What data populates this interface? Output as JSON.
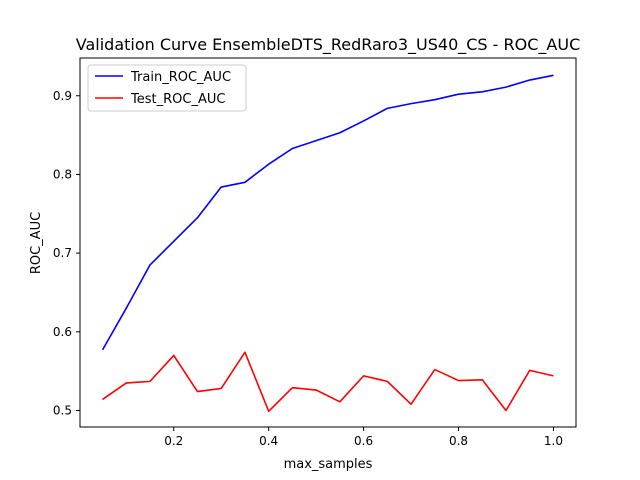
{
  "chart_data": {
    "type": "line",
    "title": "Validation Curve EnsembleDTS_RedRaro3_US40_CS - ROC_AUC",
    "xlabel": "max_samples",
    "ylabel": "ROC_AUC",
    "xlim": [
      0.0025,
      1.0475
    ],
    "ylim": [
      0.479,
      0.948
    ],
    "x_ticks": [
      0.2,
      0.4,
      0.6,
      0.8,
      1.0
    ],
    "x_tick_labels": [
      "0.2",
      "0.4",
      "0.6",
      "0.8",
      "1.0"
    ],
    "y_ticks": [
      0.5,
      0.6,
      0.7,
      0.8,
      0.9
    ],
    "y_tick_labels": [
      "0.5",
      "0.6",
      "0.7",
      "0.8",
      "0.9"
    ],
    "grid": false,
    "legend_position": "top-left",
    "x": [
      0.05,
      0.1,
      0.15,
      0.2,
      0.25,
      0.3,
      0.35,
      0.4,
      0.45,
      0.5,
      0.55,
      0.6,
      0.65,
      0.7,
      0.75,
      0.8,
      0.85,
      0.9,
      0.95,
      1.0
    ],
    "series": [
      {
        "name": "Train_ROC_AUC",
        "color": "#0000ff",
        "values": [
          0.577,
          0.63,
          0.685,
          0.715,
          0.745,
          0.784,
          0.79,
          0.813,
          0.833,
          0.843,
          0.853,
          0.868,
          0.884,
          0.89,
          0.895,
          0.902,
          0.905,
          0.911,
          0.92,
          0.926
        ]
      },
      {
        "name": "Test_ROC_AUC",
        "color": "#ff0000",
        "values": [
          0.514,
          0.535,
          0.537,
          0.57,
          0.524,
          0.528,
          0.574,
          0.499,
          0.529,
          0.526,
          0.511,
          0.544,
          0.537,
          0.508,
          0.552,
          0.538,
          0.539,
          0.5,
          0.551,
          0.544
        ]
      }
    ]
  }
}
